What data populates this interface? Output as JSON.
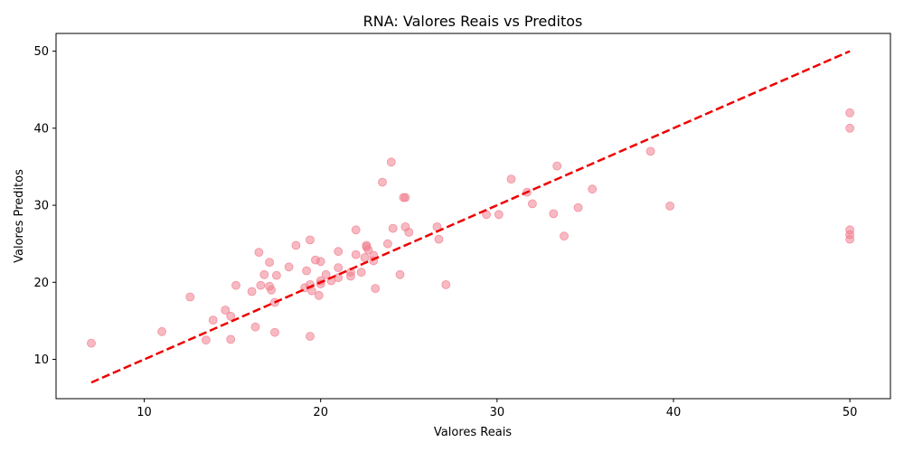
{
  "chart_data": {
    "type": "scatter",
    "title": "RNA: Valores Reais vs Preditos",
    "xlabel": "Valores Reais",
    "ylabel": "Valores Preditos",
    "xlim": [
      5,
      52.3
    ],
    "ylim": [
      4.9,
      52.3
    ],
    "xticks": [
      10,
      20,
      30,
      40,
      50
    ],
    "yticks": [
      10,
      20,
      30,
      40,
      50
    ],
    "grid": false,
    "point_color": "#f08090",
    "line_color": "#ee0000",
    "reference_line": {
      "x": [
        7,
        50
      ],
      "y": [
        7,
        50
      ],
      "style": "dashed"
    },
    "points": [
      [
        7.0,
        12.1
      ],
      [
        11.0,
        13.6
      ],
      [
        12.6,
        18.1
      ],
      [
        13.5,
        12.5
      ],
      [
        13.9,
        15.1
      ],
      [
        14.6,
        16.4
      ],
      [
        14.9,
        15.6
      ],
      [
        14.9,
        12.6
      ],
      [
        15.2,
        19.6
      ],
      [
        16.1,
        18.8
      ],
      [
        16.3,
        14.2
      ],
      [
        16.5,
        23.9
      ],
      [
        16.6,
        19.6
      ],
      [
        16.8,
        21.0
      ],
      [
        17.1,
        22.6
      ],
      [
        17.1,
        19.5
      ],
      [
        17.2,
        19.0
      ],
      [
        17.4,
        13.5
      ],
      [
        17.4,
        17.4
      ],
      [
        17.5,
        20.9
      ],
      [
        18.2,
        22.0
      ],
      [
        18.6,
        24.8
      ],
      [
        19.1,
        19.3
      ],
      [
        19.2,
        21.5
      ],
      [
        19.4,
        19.7
      ],
      [
        19.4,
        25.5
      ],
      [
        19.4,
        13.0
      ],
      [
        19.5,
        18.9
      ],
      [
        19.7,
        22.9
      ],
      [
        19.9,
        18.3
      ],
      [
        20.0,
        22.7
      ],
      [
        20.0,
        20.2
      ],
      [
        20.0,
        19.8
      ],
      [
        20.3,
        21.0
      ],
      [
        20.6,
        20.2
      ],
      [
        21.0,
        24.0
      ],
      [
        21.0,
        21.9
      ],
      [
        21.0,
        20.6
      ],
      [
        21.7,
        21.3
      ],
      [
        21.7,
        20.8
      ],
      [
        22.0,
        26.8
      ],
      [
        22.0,
        23.6
      ],
      [
        22.3,
        21.3
      ],
      [
        22.5,
        23.2
      ],
      [
        22.6,
        24.8
      ],
      [
        22.6,
        24.6
      ],
      [
        22.7,
        24.2
      ],
      [
        23.0,
        23.5
      ],
      [
        23.0,
        22.8
      ],
      [
        23.1,
        19.2
      ],
      [
        23.5,
        33.0
      ],
      [
        23.8,
        25.0
      ],
      [
        24.0,
        35.6
      ],
      [
        24.1,
        27.0
      ],
      [
        24.5,
        21.0
      ],
      [
        24.7,
        31.0
      ],
      [
        24.8,
        31.0
      ],
      [
        24.8,
        27.2
      ],
      [
        25.0,
        26.5
      ],
      [
        26.6,
        27.2
      ],
      [
        26.7,
        25.6
      ],
      [
        27.1,
        19.7
      ],
      [
        29.4,
        28.8
      ],
      [
        30.1,
        28.8
      ],
      [
        30.8,
        33.4
      ],
      [
        31.7,
        31.7
      ],
      [
        32.0,
        30.2
      ],
      [
        33.2,
        28.9
      ],
      [
        33.4,
        35.1
      ],
      [
        33.8,
        26.0
      ],
      [
        34.6,
        29.7
      ],
      [
        35.4,
        32.1
      ],
      [
        38.7,
        37.0
      ],
      [
        39.8,
        29.9
      ],
      [
        50.0,
        42.0
      ],
      [
        50.0,
        40.0
      ],
      [
        50.0,
        26.8
      ],
      [
        50.0,
        26.2
      ],
      [
        50.0,
        25.6
      ]
    ]
  }
}
